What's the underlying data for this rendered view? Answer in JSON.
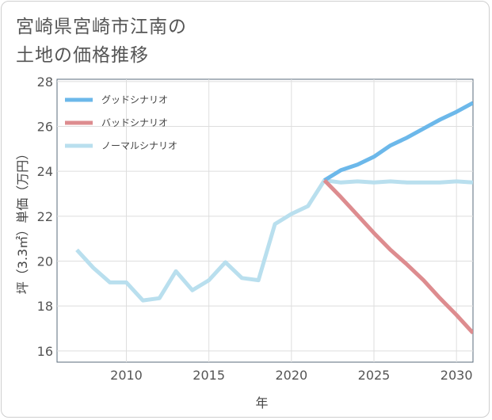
{
  "title_lines": [
    "宮崎県宮崎市江南の",
    "土地の価格推移"
  ],
  "chart_data": {
    "type": "line",
    "title": "宮崎県宮崎市江南の土地の価格推移",
    "xlabel": "年",
    "ylabel": "坪（3.3㎡）単価（万円）",
    "xlim": [
      2005.8,
      2031
    ],
    "ylim": [
      15.5,
      28.1
    ],
    "xticks": [
      2010,
      2015,
      2020,
      2025,
      2030
    ],
    "yticks": [
      16,
      18,
      20,
      22,
      24,
      26,
      28
    ],
    "grid": true,
    "legend_position": "top-left",
    "series": [
      {
        "name": "グッドシナリオ",
        "color": "#6cb8ea",
        "x": [
          2022,
          2023,
          2024,
          2025,
          2026,
          2027,
          2028,
          2029,
          2030,
          2031
        ],
        "y": [
          23.6,
          24.05,
          24.3,
          24.65,
          25.15,
          25.5,
          25.9,
          26.3,
          26.65,
          27.05
        ]
      },
      {
        "name": "バッドシナリオ",
        "color": "#dd8c8f",
        "x": [
          2022,
          2023,
          2024,
          2025,
          2026,
          2027,
          2028,
          2029,
          2030,
          2031
        ],
        "y": [
          23.6,
          22.85,
          22.05,
          21.25,
          20.5,
          19.85,
          19.15,
          18.35,
          17.6,
          16.8
        ]
      },
      {
        "name": "ノーマルシナリオ",
        "color": "#b9dfee",
        "x": [
          2007,
          2008,
          2009,
          2010,
          2011,
          2012,
          2013,
          2014,
          2015,
          2016,
          2017,
          2018,
          2019,
          2020,
          2021,
          2022,
          2023,
          2024,
          2025,
          2026,
          2027,
          2028,
          2029,
          2030,
          2031
        ],
        "y": [
          20.5,
          19.7,
          19.05,
          19.05,
          18.25,
          18.35,
          19.55,
          18.7,
          19.15,
          19.95,
          19.25,
          19.15,
          21.65,
          22.1,
          22.45,
          23.6,
          23.5,
          23.55,
          23.5,
          23.55,
          23.5,
          23.5,
          23.5,
          23.55,
          23.5
        ]
      }
    ]
  }
}
